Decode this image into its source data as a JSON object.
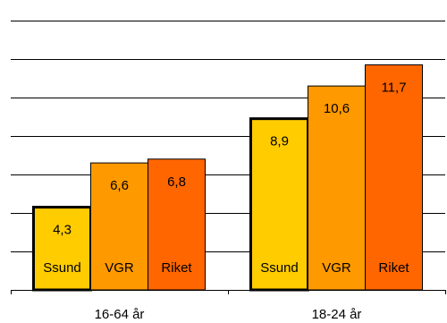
{
  "chart_data": {
    "type": "bar",
    "title": "",
    "xlabel": "",
    "ylabel": "",
    "categories": [
      "16-64 år",
      "18-24 år"
    ],
    "series": [
      {
        "name": "Ssund",
        "values": [
          4.3,
          8.9
        ],
        "color": "#FFCC00"
      },
      {
        "name": "VGR",
        "values": [
          6.6,
          10.6
        ],
        "color": "#FF9900"
      },
      {
        "name": "Riket",
        "values": [
          6.8,
          11.7
        ],
        "color": "#FF6600"
      }
    ],
    "value_labels": [
      [
        "4,3",
        "8,9"
      ],
      [
        "6,6",
        "10,6"
      ],
      [
        "6,8",
        "11,7"
      ]
    ],
    "ylim": [
      0,
      14
    ],
    "ytick_step": 2,
    "grid": true,
    "legend": "none",
    "highlight_series": "Ssund"
  }
}
